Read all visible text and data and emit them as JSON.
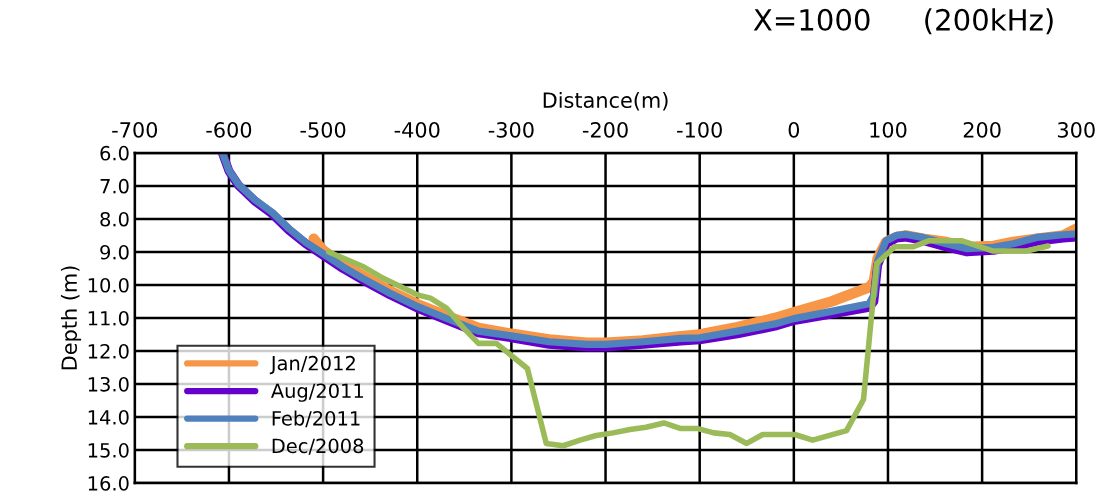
{
  "chart_data": {
    "type": "line",
    "title": "X=1000",
    "subtitle": "(200kHz)",
    "xlabel": "Distance(m)",
    "ylabel": "Depth (m)",
    "xlim": [
      -700,
      300
    ],
    "xticks": [
      -700,
      -600,
      -500,
      -400,
      -300,
      -200,
      -100,
      0,
      100,
      200,
      300
    ],
    "ylim": [
      16,
      6
    ],
    "yticks": [
      {
        "value": 6,
        "label": "6.0"
      },
      {
        "value": 7,
        "label": "7.0"
      },
      {
        "value": 8,
        "label": "8.0"
      },
      {
        "value": 9,
        "label": "9.0"
      },
      {
        "value": 10,
        "label": "10.0"
      },
      {
        "value": 11,
        "label": "11.0"
      },
      {
        "value": 12,
        "label": "12.0"
      },
      {
        "value": 13,
        "label": "13.0"
      },
      {
        "value": 14,
        "label": "14.0"
      },
      {
        "value": 15,
        "label": "15.0"
      },
      {
        "value": 16,
        "label": "16.0"
      }
    ],
    "grid": true,
    "legend": "bottom left",
    "marker": "none",
    "line_style": "solid",
    "series": [
      {
        "name": "Jan/2012",
        "color": "#f79646",
        "x": [
          -510,
          -500,
          -479,
          -458,
          -429,
          -400,
          -370,
          -335,
          -300,
          -260,
          -220,
          -200,
          -160,
          -120,
          -100,
          -60,
          -20,
          0,
          40,
          80,
          85,
          89,
          98,
          109,
          119,
          137,
          162,
          184,
          212,
          233,
          258,
          286,
          300
        ],
        "values": [
          8.6,
          8.95,
          9.38,
          9.72,
          10.18,
          10.58,
          10.92,
          11.3,
          11.48,
          11.65,
          11.75,
          11.75,
          11.68,
          11.55,
          11.5,
          11.28,
          11.0,
          10.83,
          10.5,
          10.07,
          9.9,
          9.2,
          8.7,
          8.55,
          8.5,
          8.6,
          8.7,
          8.85,
          8.82,
          8.7,
          8.6,
          8.5,
          8.3
        ]
      },
      {
        "name": "Aug/2011",
        "color": "#6600cc",
        "x": [
          -607,
          -600,
          -590,
          -572,
          -554,
          -536,
          -518,
          -500,
          -479,
          -458,
          -429,
          -400,
          -370,
          -335,
          -300,
          -260,
          -220,
          -200,
          -160,
          -120,
          -100,
          -60,
          -20,
          0,
          40,
          80,
          85,
          89,
          98,
          109,
          119,
          137,
          162,
          184,
          212,
          233,
          258,
          286,
          300
        ],
        "values": [
          6.0,
          6.55,
          6.98,
          7.47,
          7.85,
          8.35,
          8.76,
          9.1,
          9.5,
          9.85,
          10.3,
          10.7,
          11.05,
          11.45,
          11.6,
          11.8,
          11.88,
          11.88,
          11.8,
          11.7,
          11.66,
          11.48,
          11.25,
          11.08,
          10.88,
          10.68,
          10.5,
          9.4,
          8.75,
          8.58,
          8.55,
          8.65,
          8.85,
          9.0,
          8.95,
          8.85,
          8.68,
          8.58,
          8.55
        ]
      },
      {
        "name": "Feb/2011",
        "color": "#4f81bd",
        "x": [
          -607,
          -600,
          -590,
          -572,
          -554,
          -536,
          -518,
          -500,
          -479,
          -458,
          -429,
          -400,
          -370,
          -335,
          -300,
          -260,
          -220,
          -200,
          -160,
          -120,
          -100,
          -60,
          -20,
          0,
          40,
          80,
          85,
          89,
          98,
          109,
          119,
          137,
          162,
          184,
          212,
          233,
          258,
          286,
          300
        ],
        "values": [
          6.0,
          6.53,
          6.95,
          7.43,
          7.8,
          8.3,
          8.72,
          9.05,
          9.45,
          9.8,
          10.25,
          10.65,
          11.0,
          11.4,
          11.54,
          11.72,
          11.8,
          11.8,
          11.72,
          11.62,
          11.6,
          11.4,
          11.18,
          11.02,
          10.8,
          10.57,
          10.3,
          9.27,
          8.66,
          8.5,
          8.47,
          8.56,
          8.75,
          8.9,
          8.86,
          8.75,
          8.56,
          8.48,
          8.45
        ]
      },
      {
        "name": "Dec/2008",
        "color": "#9bbb59",
        "x": [
          -494,
          -457,
          -436,
          -400,
          -386,
          -369,
          -351,
          -335,
          -316,
          -283,
          -263,
          -245,
          -227,
          -210,
          -192,
          -174,
          -157,
          -138,
          -120,
          -102,
          -85,
          -68,
          -50,
          -33,
          1,
          20,
          56,
          74,
          82,
          88,
          107,
          127,
          144,
          178,
          211,
          247,
          270
        ],
        "values": [
          9.0,
          9.45,
          9.8,
          10.3,
          10.4,
          10.7,
          11.3,
          11.77,
          11.77,
          12.53,
          14.8,
          14.87,
          14.7,
          14.56,
          14.48,
          14.38,
          14.31,
          14.18,
          14.35,
          14.35,
          14.48,
          14.53,
          14.8,
          14.53,
          14.53,
          14.7,
          14.41,
          13.47,
          11.08,
          9.36,
          8.84,
          8.84,
          8.66,
          8.66,
          8.97,
          8.97,
          8.82
        ]
      }
    ]
  }
}
